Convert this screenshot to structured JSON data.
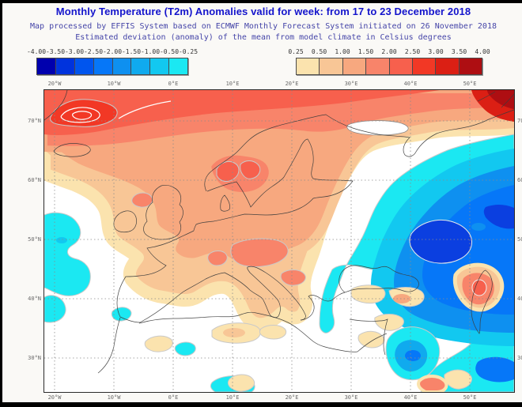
{
  "header": {
    "title": "Monthly Temperature (T2m) Anomalies valid for week: from 17 to 23 December 2018",
    "subtitle_line1": "Map processed by EFFIS System based on ECMWF Monthly Forecast System initiated on 26 November 2018",
    "subtitle_line2": "Estimated deviation (anomaly) of the mean from model climate in Celsius degrees",
    "title_color": "#1414CC",
    "subtitle_color": "#4545A8"
  },
  "legend": {
    "negative": {
      "tick_labels": [
        "-4.00",
        "-3.50",
        "-3.00",
        "-2.50",
        "-2.00",
        "-1.50",
        "-1.00",
        "-0.50",
        "-0.25"
      ],
      "cell_colors": [
        "#0000AE",
        "#0033DD",
        "#0055EE",
        "#0677F8",
        "#0E90F0",
        "#10AAEE",
        "#12C8F0",
        "#1BE8F2"
      ]
    },
    "positive": {
      "tick_labels": [
        "0.25",
        "0.50",
        "1.00",
        "1.50",
        "2.00",
        "2.50",
        "3.00",
        "3.50",
        "4.00"
      ],
      "cell_colors": [
        "#FBE3AE",
        "#F8C696",
        "#F7A87F",
        "#F8846A",
        "#F7604D",
        "#F23825",
        "#DB1F14",
        "#AE0E12"
      ]
    },
    "units": "Celsius degrees anomaly"
  },
  "map": {
    "x_tick_labels": [
      "20°W",
      "10°W",
      "0°E",
      "10°E",
      "20°E",
      "30°E",
      "40°E",
      "50°E"
    ],
    "y_tick_labels_left": [
      "70°N",
      "60°N",
      "50°N",
      "40°N",
      "30°N"
    ],
    "y_tick_labels_right": [
      "70",
      "60",
      "50",
      "40",
      "30"
    ],
    "palette": {
      "cream": "#FBE3AE",
      "peach": "#F8C696",
      "salmon": "#F7A87F",
      "coral": "#F8846A",
      "redorange": "#F7604D",
      "red": "#F23825",
      "darkred": "#DB1F14",
      "deepred": "#AE0E12",
      "cyan": "#1BE8F2",
      "cyanblue": "#12C8F0",
      "skyblue": "#10AAEE",
      "azure": "#0E90F0",
      "blue": "#0677F8",
      "deepblue": "#0B3FE0",
      "neutral": "#FFFFFF",
      "coast": "#3C3C3C",
      "grid": "#8A8A8A",
      "contour": "#C9C9C9"
    },
    "features": {
      "warm_anomaly": "Strong positive anomaly (1.5 to 4.0) over Arctic / Norwegian Sea, Scandinavia and central Europe; maximum dark red near Novaya Zemlya",
      "cold_anomaly": "Strong negative anomaly (-1.0 to -3.0) over western Russia, Caspian region, Persian Gulf; minor cold patches in the Atlantic and Mediterranean",
      "neutral": "White areas near zero anomaly over Iberia, central Mediterranean and Middle East"
    }
  }
}
